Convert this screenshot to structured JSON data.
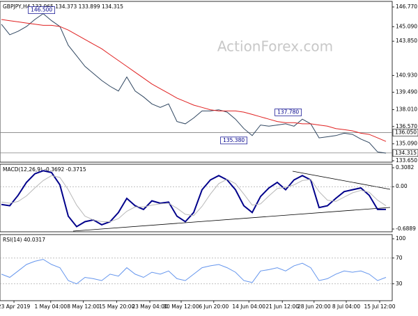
{
  "watermark": "ActionForex.com",
  "chart_data": [
    {
      "type": "line",
      "title": "GBPJPY,H4  133.965 134.373 133.899 134.315",
      "xlim": [
        -0.17,
        46.75
      ],
      "ylim": [
        133.53,
        147.245
      ],
      "yticks": [
        {
          "value": 146.77,
          "label": "146.770"
        },
        {
          "value": 145.09,
          "label": "145.090"
        },
        {
          "value": 143.85,
          "label": "143.850"
        },
        {
          "value": 140.93,
          "label": "140.930"
        },
        {
          "value": 139.49,
          "label": "139.490"
        },
        {
          "value": 138.01,
          "label": "138.010"
        },
        {
          "value": 136.57,
          "label": "136.570"
        },
        {
          "value": 135.09,
          "label": "135.090"
        },
        {
          "value": 133.65,
          "label": "133.650"
        }
      ],
      "series": [
        {
          "name": "GBPJPY",
          "color": "#2f4660",
          "values": [
            145.3,
            144.4,
            144.7,
            145.1,
            145.7,
            146.2,
            145.6,
            145.1,
            143.5,
            142.6,
            141.7,
            141.1,
            140.5,
            140.0,
            139.6,
            140.8,
            139.6,
            139.1,
            138.5,
            138.2,
            138.5,
            137.0,
            136.8,
            137.3,
            137.9,
            137.9,
            138.0,
            137.8,
            137.2,
            136.4,
            135.8,
            136.7,
            136.6,
            136.7,
            136.8,
            136.6,
            137.2,
            136.8,
            135.6,
            135.7,
            135.8,
            136.0,
            135.9,
            135.5,
            135.2,
            134.4,
            134.3
          ]
        },
        {
          "name": "MA",
          "color": "#e02020",
          "values": [
            145.7,
            145.6,
            145.5,
            145.4,
            145.3,
            145.2,
            145.2,
            145.1,
            144.8,
            144.4,
            144.0,
            143.6,
            143.2,
            142.7,
            142.2,
            141.7,
            141.2,
            140.7,
            140.2,
            139.8,
            139.4,
            139.0,
            138.7,
            138.4,
            138.2,
            138.0,
            137.9,
            137.9,
            137.9,
            137.8,
            137.6,
            137.4,
            137.2,
            137.0,
            136.9,
            136.9,
            136.8,
            136.8,
            136.7,
            136.6,
            136.4,
            136.3,
            136.2,
            136.0,
            135.9,
            135.6,
            135.3
          ]
        }
      ],
      "hlines": [
        {
          "value": 136.05,
          "label": "136.050"
        },
        {
          "value": 134.315,
          "label": "134.315"
        }
      ],
      "annotations": [
        {
          "x": 4.8,
          "value": 146.5,
          "label": "146.500"
        },
        {
          "x": 34.3,
          "value": 137.78,
          "label": "137.780"
        },
        {
          "x": 27.8,
          "value": 135.38,
          "label": "135.380"
        }
      ]
    },
    {
      "type": "line",
      "title": "MACD(12,26,9) -0.3692 -0.3715",
      "xlim": [
        -0.17,
        46.75
      ],
      "ylim": [
        -0.734,
        0.365
      ],
      "yticks": [
        0.3082,
        {
          "value": 0,
          "label": "0.00"
        },
        -0.6889
      ],
      "series": [
        {
          "name": "MACD",
          "color": "#00008b",
          "values": [
            -0.29,
            -0.31,
            -0.14,
            0.07,
            0.21,
            0.26,
            0.23,
            0.03,
            -0.48,
            -0.65,
            -0.57,
            -0.54,
            -0.62,
            -0.57,
            -0.42,
            -0.19,
            -0.31,
            -0.37,
            -0.23,
            -0.27,
            -0.25,
            -0.48,
            -0.57,
            -0.42,
            -0.05,
            0.11,
            0.18,
            0.11,
            -0.05,
            -0.31,
            -0.42,
            -0.16,
            -0.02,
            0.07,
            -0.05,
            0.11,
            0.18,
            0.11,
            -0.34,
            -0.31,
            -0.19,
            -0.08,
            -0.05,
            -0.02,
            -0.14,
            -0.37,
            -0.37
          ]
        },
        {
          "name": "Signal",
          "color": "#b8b8b8",
          "values": [
            -0.25,
            -0.27,
            -0.24,
            -0.15,
            -0.02,
            0.1,
            0.18,
            0.15,
            -0.05,
            -0.3,
            -0.48,
            -0.54,
            -0.57,
            -0.57,
            -0.52,
            -0.4,
            -0.33,
            -0.33,
            -0.3,
            -0.28,
            -0.27,
            -0.35,
            -0.45,
            -0.47,
            -0.32,
            -0.12,
            0.05,
            0.12,
            0.05,
            -0.12,
            -0.3,
            -0.28,
            -0.15,
            -0.03,
            -0.01,
            0.03,
            0.1,
            0.12,
            -0.08,
            -0.22,
            -0.24,
            -0.17,
            -0.1,
            -0.06,
            -0.09,
            -0.22,
            -0.31
          ]
        }
      ]
    },
    {
      "type": "line",
      "title": "RSI(14) 40.0317",
      "xlim": [
        -0.17,
        46.75
      ],
      "ylim": [
        3.8,
        106.5
      ],
      "yticks": [
        100,
        70,
        30
      ],
      "xticks": [
        {
          "value": 1.5,
          "label": "23 Apr 2019"
        },
        {
          "value": 5.9,
          "label": "1 May 04:00"
        },
        {
          "value": 9.8,
          "label": "8 May 12:00"
        },
        {
          "value": 13.8,
          "label": "15 May 20:00"
        },
        {
          "value": 17.75,
          "label": "23 May 04:00"
        },
        {
          "value": 21.5,
          "label": "30 May 12:00"
        },
        {
          "value": 25.4,
          "label": "6 Jun 20:00"
        },
        {
          "value": 29.6,
          "label": "14 Jun 04:00"
        },
        {
          "value": 33.6,
          "label": "21 Jun 12:00"
        },
        {
          "value": 37.4,
          "label": "28 Jun 20:00"
        },
        {
          "value": 41.25,
          "label": "8 Jul 04:00"
        },
        {
          "value": 45.25,
          "label": "15 Jul 12:00"
        }
      ],
      "series": [
        {
          "name": "RSI",
          "color": "#6495ed",
          "values": [
            45,
            40,
            50,
            60,
            65,
            68,
            60,
            55,
            35,
            30,
            40,
            38,
            35,
            45,
            42,
            55,
            45,
            40,
            48,
            45,
            50,
            38,
            35,
            45,
            55,
            58,
            60,
            55,
            48,
            35,
            32,
            50,
            52,
            55,
            50,
            58,
            62,
            55,
            35,
            38,
            45,
            50,
            48,
            50,
            45,
            35,
            40.0317
          ]
        }
      ]
    }
  ]
}
